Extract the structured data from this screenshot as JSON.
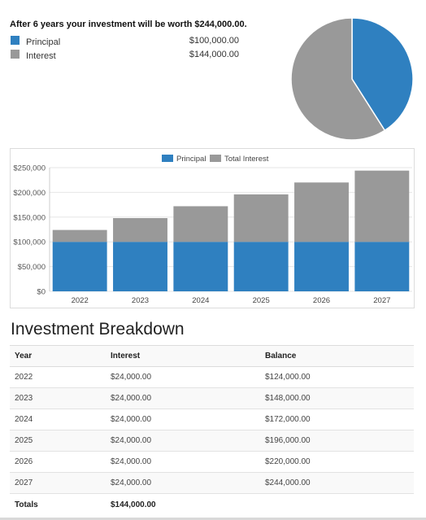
{
  "summary": {
    "headline": "After 6 years your investment will be worth $244,000.00.",
    "legend": [
      {
        "label": "Principal",
        "amount": "$100,000.00",
        "color": "#2f80c0"
      },
      {
        "label": "Interest",
        "amount": "$144,000.00",
        "color": "#999999"
      }
    ]
  },
  "pie_data": {
    "type": "pie",
    "slices": [
      {
        "name": "Principal",
        "value": 100000,
        "color": "#2f80c0"
      },
      {
        "name": "Interest",
        "value": 144000,
        "color": "#999999"
      }
    ]
  },
  "chart_data": {
    "type": "bar",
    "stacked": true,
    "categories": [
      "2022",
      "2023",
      "2024",
      "2025",
      "2026",
      "2027"
    ],
    "series": [
      {
        "name": "Principal",
        "values": [
          100000,
          100000,
          100000,
          100000,
          100000,
          100000
        ],
        "color": "#2f80c0"
      },
      {
        "name": "Total Interest",
        "values": [
          24000,
          48000,
          72000,
          96000,
          120000,
          144000
        ],
        "color": "#999999"
      }
    ],
    "ylim": [
      0,
      250000
    ],
    "yticks": [
      0,
      50000,
      100000,
      150000,
      200000,
      250000
    ],
    "ytick_labels": [
      "$0",
      "$50,000",
      "$100,000",
      "$150,000",
      "$200,000",
      "$250,000"
    ],
    "legend_position": "top-center",
    "grid": true
  },
  "breakdown": {
    "title": "Investment Breakdown",
    "headers": [
      "Year",
      "Interest",
      "Balance"
    ],
    "rows": [
      [
        "2022",
        "$24,000.00",
        "$124,000.00"
      ],
      [
        "2023",
        "$24,000.00",
        "$148,000.00"
      ],
      [
        "2024",
        "$24,000.00",
        "$172,000.00"
      ],
      [
        "2025",
        "$24,000.00",
        "$196,000.00"
      ],
      [
        "2026",
        "$24,000.00",
        "$220,000.00"
      ],
      [
        "2027",
        "$24,000.00",
        "$244,000.00"
      ]
    ],
    "totals": [
      "Totals",
      "$144,000.00",
      ""
    ]
  }
}
